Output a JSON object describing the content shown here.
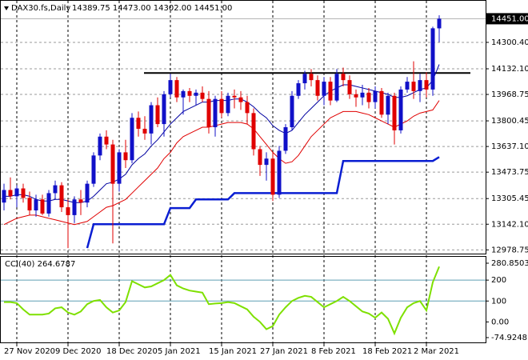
{
  "chart_data": [
    {
      "type": "candlestick",
      "title": "DAX30.fs,Daily",
      "ohlc_label": "14389.75 14473.00 14302.00 14451.00",
      "up_color": "#1010c8",
      "down_color": "#e00000",
      "categories": [
        null,
        null,
        "27 Nov 2020",
        null,
        null,
        null,
        null,
        null,
        null,
        null,
        "9 Dec 2020",
        null,
        null,
        null,
        null,
        null,
        null,
        null,
        "18 Dec 2020",
        null,
        null,
        null,
        null,
        null,
        null,
        null,
        "5 Jan 2021",
        null,
        null,
        null,
        null,
        null,
        null,
        null,
        "15 Jan 2021",
        null,
        null,
        null,
        null,
        null,
        null,
        null,
        "27 Jan 2021",
        null,
        null,
        null,
        null,
        null,
        null,
        null,
        "8 Feb 2021",
        null,
        null,
        null,
        null,
        null,
        null,
        null,
        "18 Feb 2021",
        null,
        null,
        null,
        null,
        null,
        null,
        null,
        "2 Mar 2021",
        null,
        null
      ],
      "open": [
        13280,
        13360,
        13320,
        13370,
        13310,
        13230,
        13300,
        13210,
        13340,
        13390,
        13250,
        13200,
        13300,
        13280,
        13400,
        13580,
        13700,
        13650,
        13400,
        13600,
        13550,
        13820,
        13750,
        13720,
        13900,
        13780,
        13970,
        14060,
        13950,
        13990,
        13960,
        13980,
        13940,
        13760,
        13940,
        13850,
        13960,
        13950,
        13920,
        13850,
        13620,
        13520,
        13560,
        13330,
        13610,
        13760,
        13960,
        14040,
        14100,
        14060,
        13960,
        14050,
        13930,
        14100,
        14060,
        13970,
        13950,
        13980,
        13920,
        13990,
        13840,
        13960,
        13740,
        14000,
        14050,
        13990,
        14060,
        14000,
        14389.75
      ],
      "high": [
        13400,
        13440,
        13390,
        13400,
        13350,
        13330,
        13330,
        13360,
        13420,
        13410,
        13300,
        13320,
        13360,
        13420,
        13600,
        13720,
        13740,
        13680,
        13620,
        13680,
        13850,
        13860,
        13830,
        13920,
        13950,
        13990,
        14100,
        14080,
        14000,
        14010,
        14000,
        14020,
        13990,
        13960,
        13990,
        13980,
        14000,
        13990,
        13960,
        13880,
        13640,
        13600,
        13600,
        13640,
        13780,
        13990,
        14060,
        14120,
        14130,
        14090,
        14080,
        14080,
        14130,
        14140,
        14090,
        14000,
        14030,
        14010,
        14020,
        14010,
        13980,
        13980,
        14020,
        14080,
        14180,
        14100,
        14110,
        14400,
        14473
      ],
      "low": [
        13230,
        13300,
        13250,
        13280,
        13200,
        13190,
        13200,
        13190,
        13300,
        13220,
        12990,
        13150,
        13200,
        13250,
        13380,
        13550,
        13620,
        13020,
        13350,
        13500,
        13530,
        13700,
        13680,
        13650,
        13760,
        13700,
        13950,
        13920,
        13840,
        13920,
        13900,
        13920,
        13720,
        13700,
        13820,
        13830,
        13880,
        13870,
        13780,
        13580,
        13450,
        13420,
        13290,
        13310,
        13590,
        13740,
        13940,
        14000,
        14020,
        13930,
        13900,
        13900,
        13920,
        14020,
        13940,
        13890,
        13900,
        13880,
        13880,
        13820,
        13780,
        13650,
        13720,
        13980,
        13940,
        13920,
        13950,
        13960,
        14302
      ],
      "close": [
        13360,
        13320,
        13370,
        13310,
        13230,
        13300,
        13210,
        13340,
        13390,
        13250,
        13200,
        13300,
        13280,
        13400,
        13580,
        13700,
        13650,
        13400,
        13600,
        13550,
        13820,
        13750,
        13720,
        13900,
        13780,
        13970,
        14060,
        13950,
        13990,
        13960,
        13980,
        13940,
        13760,
        13940,
        13850,
        13960,
        13950,
        13920,
        13850,
        13620,
        13520,
        13560,
        13330,
        13610,
        13760,
        13960,
        14040,
        14100,
        14060,
        13960,
        14050,
        13930,
        14100,
        14060,
        13970,
        13950,
        13980,
        13920,
        13990,
        13840,
        13960,
        13740,
        14000,
        14050,
        13990,
        14060,
        14000,
        14390,
        14451
      ],
      "overlays": [
        {
          "color": "#0000a0",
          "width": 1,
          "values": [
            13320,
            13320,
            13330,
            13330,
            13320,
            13300,
            13290,
            13290,
            13300,
            13300,
            13290,
            13280,
            13280,
            13290,
            13320,
            13360,
            13400,
            13410,
            13430,
            13460,
            13520,
            13560,
            13590,
            13640,
            13680,
            13730,
            13780,
            13820,
            13860,
            13880,
            13900,
            13920,
            13920,
            13930,
            13930,
            13930,
            13940,
            13940,
            13920,
            13890,
            13850,
            13820,
            13770,
            13740,
            13720,
            13740,
            13790,
            13840,
            13880,
            13920,
            13960,
            13990,
            14010,
            14030,
            14030,
            14020,
            14010,
            14000,
            13990,
            13980,
            13970,
            13950,
            13950,
            13960,
            13980,
            14000,
            14010,
            14060,
            14160
          ]
        },
        {
          "color": "#e00000",
          "width": 1,
          "values": [
            13140,
            13160,
            13180,
            13190,
            13200,
            13200,
            13190,
            13180,
            13170,
            13160,
            13150,
            13140,
            13150,
            13160,
            13190,
            13220,
            13250,
            13260,
            13280,
            13300,
            13340,
            13380,
            13420,
            13460,
            13500,
            13560,
            13600,
            13660,
            13700,
            13720,
            13740,
            13760,
            13760,
            13770,
            13780,
            13790,
            13790,
            13790,
            13780,
            13750,
            13700,
            13650,
            13600,
            13560,
            13530,
            13540,
            13580,
            13640,
            13700,
            13740,
            13780,
            13820,
            13840,
            13860,
            13860,
            13860,
            13850,
            13840,
            13820,
            13800,
            13780,
            13760,
            13780,
            13800,
            13830,
            13850,
            13860,
            13870,
            13930
          ]
        },
        {
          "color": "#0a1ed2",
          "width": 2.5,
          "values": [
            null,
            null,
            null,
            null,
            null,
            null,
            null,
            null,
            null,
            null,
            null,
            null,
            null,
            12990,
            13142,
            13142,
            13142,
            13142,
            13142,
            13142,
            13142,
            13142,
            13142,
            13142,
            13142,
            13142,
            13245,
            13245,
            13245,
            13245,
            13300,
            13300,
            13300,
            13300,
            13300,
            13300,
            13340,
            13340,
            13340,
            13340,
            13340,
            13340,
            13340,
            13340,
            13340,
            13340,
            13340,
            13340,
            13340,
            13340,
            13340,
            13340,
            13340,
            13545,
            13545,
            13545,
            13545,
            13545,
            13545,
            13545,
            13545,
            13545,
            13545,
            13545,
            13545,
            13545,
            13545,
            13545,
            13570
          ]
        }
      ],
      "level": 14105,
      "last_price": {
        "value": 14451,
        "label": "14451.00"
      },
      "ylim": [
        12960,
        14555
      ],
      "yticks": [
        {
          "value": 14300.4,
          "label": "14300.40"
        },
        {
          "value": 14132.1,
          "label": "14132.10"
        },
        13968.75,
        {
          "value": 13800.45,
          "label": "13800.45"
        },
        {
          "value": 13637.1,
          "label": "13637.10"
        },
        13473.75,
        {
          "value": 13305.45,
          "label": "13305.45"
        },
        {
          "value": 13142.1,
          "label": "13142.10"
        },
        12978.75
      ],
      "grid": true
    },
    {
      "type": "line",
      "title": "CCI(40) 264.6787",
      "color": "#7ee000",
      "values": [
        95,
        95,
        90,
        60,
        35,
        35,
        35,
        40,
        65,
        70,
        45,
        35,
        50,
        85,
        100,
        105,
        70,
        45,
        55,
        95,
        195,
        180,
        165,
        170,
        185,
        200,
        225,
        175,
        160,
        150,
        145,
        140,
        85,
        88,
        90,
        95,
        90,
        75,
        60,
        25,
        0,
        -35,
        -20,
        35,
        70,
        100,
        115,
        125,
        120,
        95,
        70,
        85,
        100,
        120,
        100,
        75,
        50,
        40,
        20,
        45,
        15,
        -55,
        20,
        70,
        90,
        100,
        55,
        190,
        264.6787
      ],
      "levels": [
        100,
        200
      ],
      "level_color": "#5f9fb4",
      "ylim": [
        -74.9248,
        280.8503
      ],
      "yticks": [
        280.8503,
        200,
        100,
        {
          "value": 0,
          "label": "0.00"
        },
        -74.9248
      ]
    }
  ]
}
